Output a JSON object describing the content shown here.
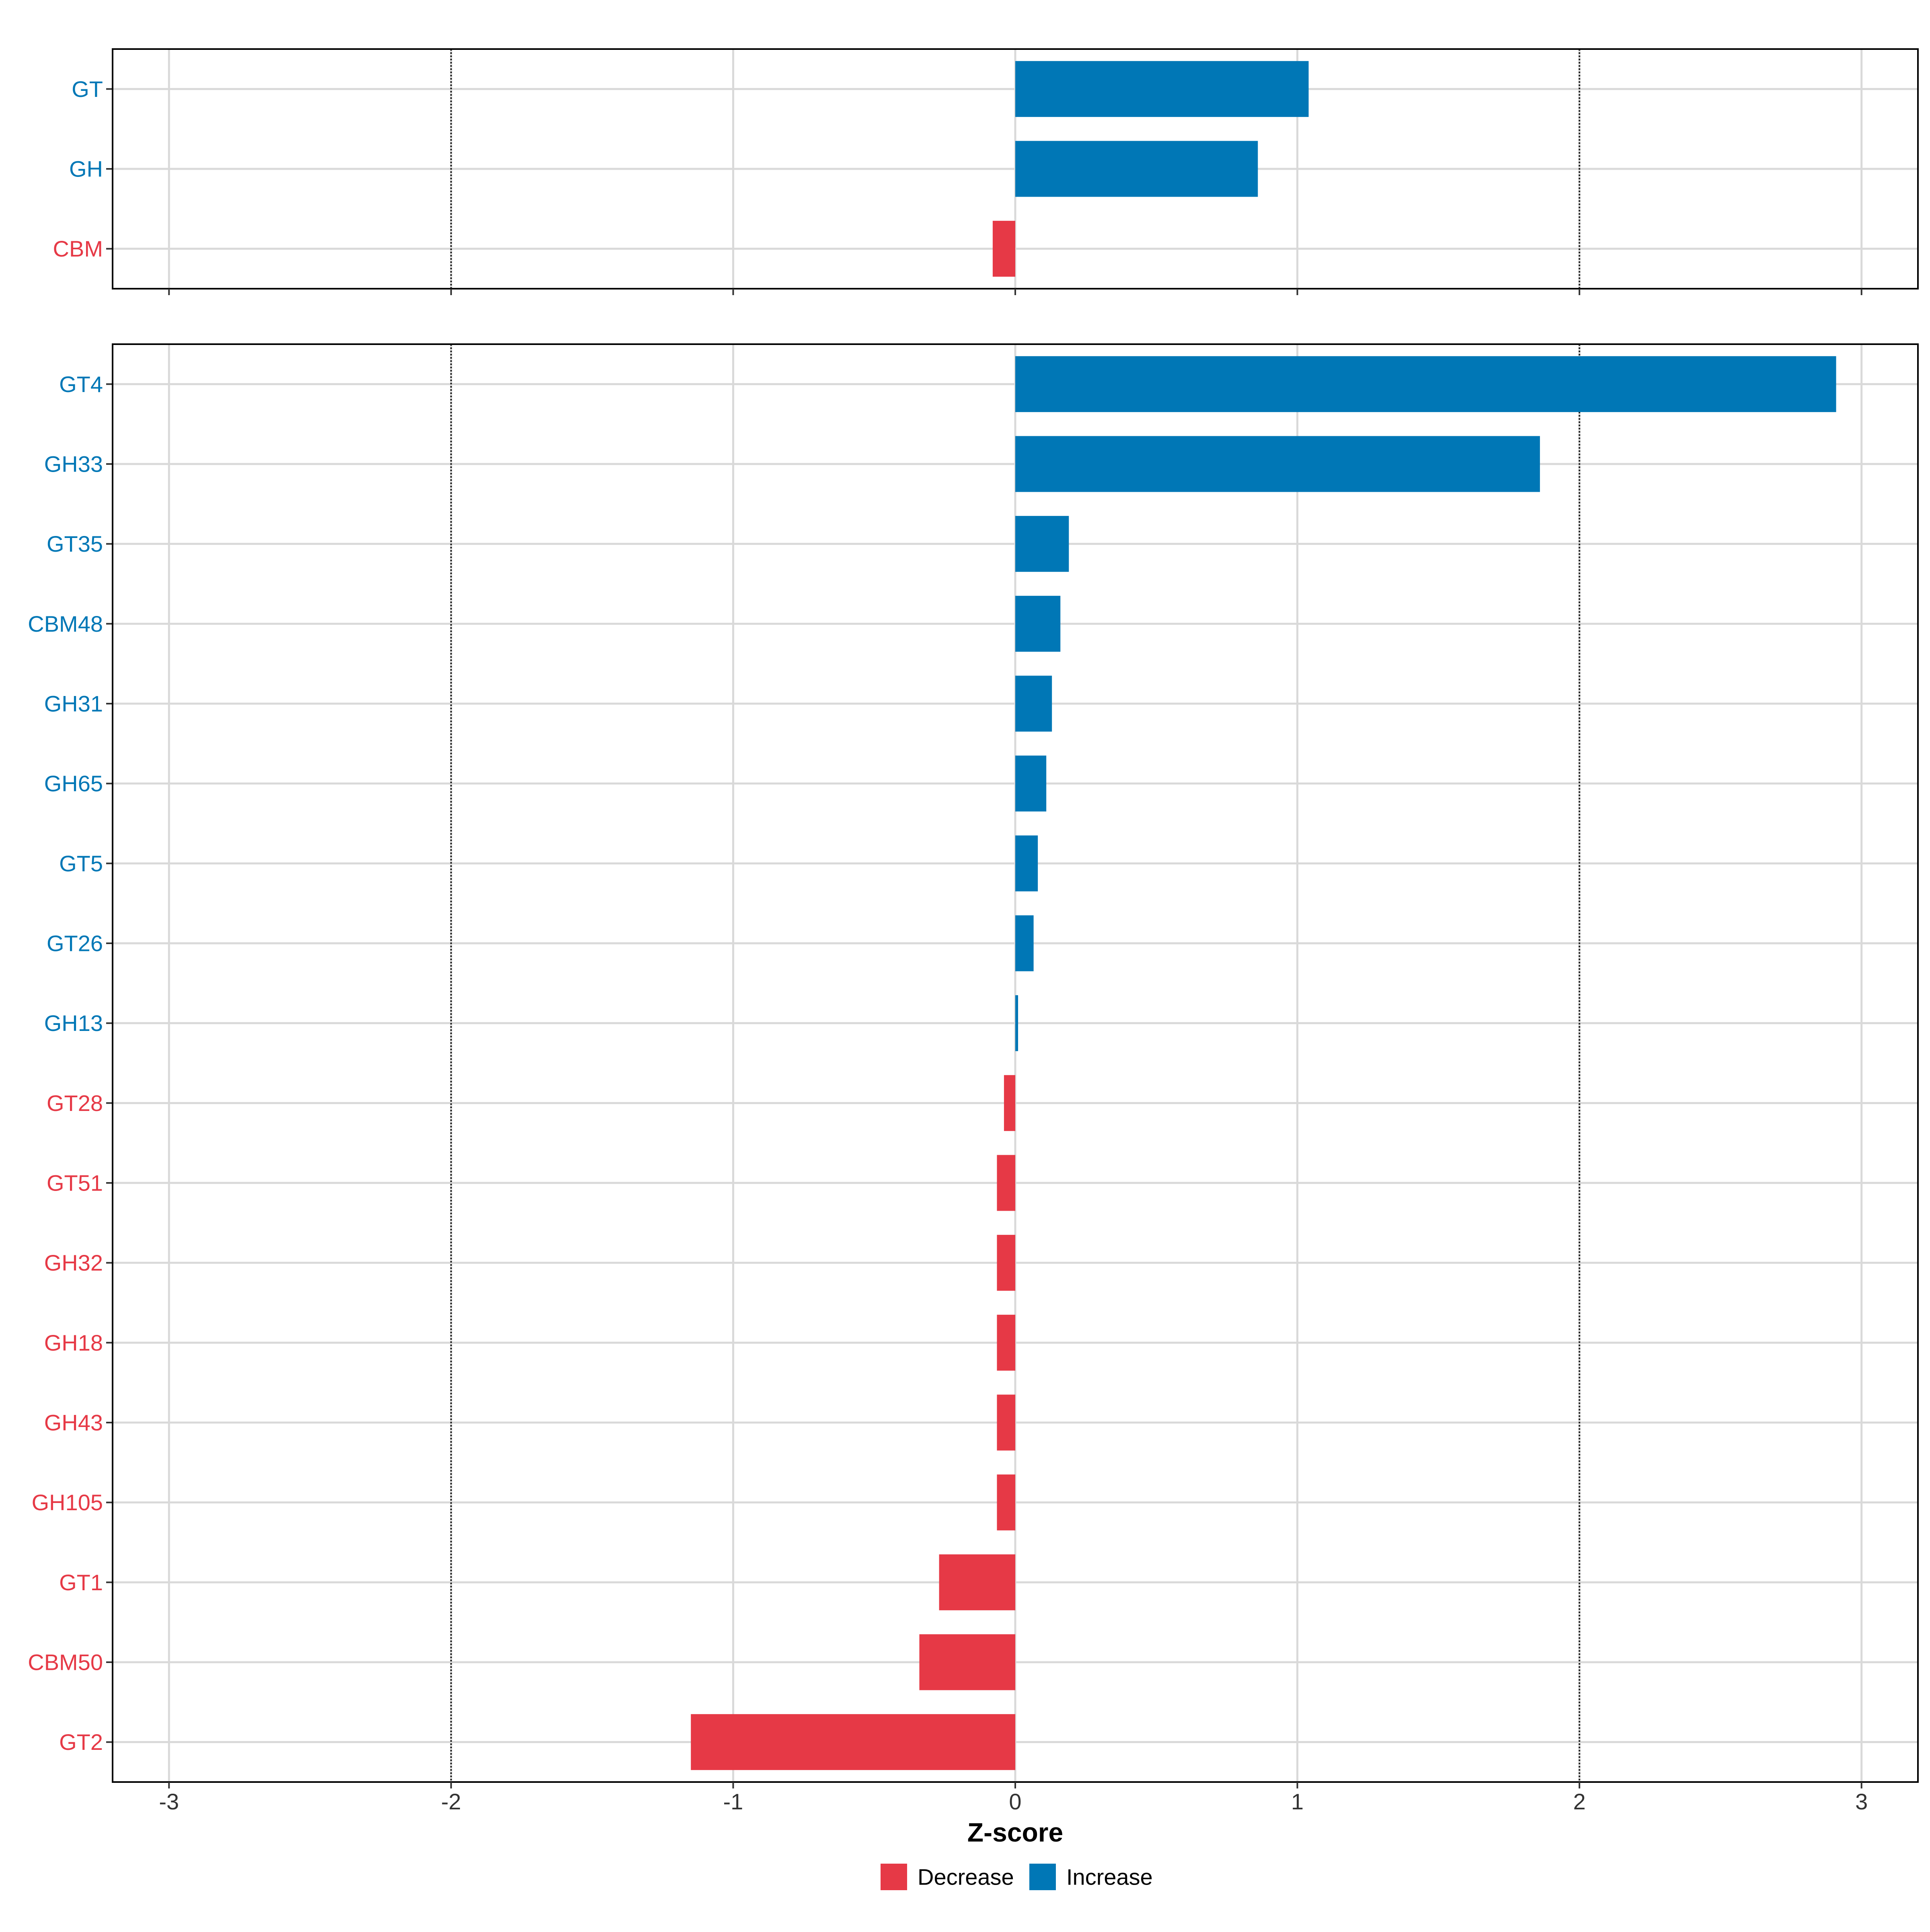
{
  "chart_data": {
    "type": "bar",
    "orientation": "horizontal",
    "xlabel": "Z-score",
    "xlim": [
      -3.2,
      3.2
    ],
    "xticks": [
      -3,
      -2,
      -1,
      0,
      1,
      2,
      3
    ],
    "xtick_labels": [
      "-3",
      "-2",
      "-1",
      "0",
      "1",
      "2",
      "3"
    ],
    "reference_lines": [
      -2,
      2
    ],
    "grid": true,
    "colors": {
      "Decrease": "#e63946",
      "Increase": "#0077b6"
    },
    "legend": {
      "position": "bottom",
      "entries": [
        {
          "label": "Decrease",
          "color": "#e63946"
        },
        {
          "label": "Increase",
          "color": "#0077b6"
        }
      ]
    },
    "panels": [
      {
        "categories": [
          "GT",
          "GH",
          "CBM"
        ],
        "values": [
          1.04,
          0.86,
          -0.08
        ],
        "direction": [
          "Increase",
          "Increase",
          "Decrease"
        ]
      },
      {
        "categories": [
          "GT4",
          "GH33",
          "GT35",
          "CBM48",
          "GH31",
          "GH65",
          "GT5",
          "GT26",
          "GH13",
          "GT28",
          "GT51",
          "GH32",
          "GH18",
          "GH43",
          "GH105",
          "GT1",
          "CBM50",
          "GT2"
        ],
        "values": [
          2.91,
          1.86,
          0.19,
          0.16,
          0.13,
          0.11,
          0.08,
          0.065,
          0.01,
          -0.04,
          -0.065,
          -0.065,
          -0.065,
          -0.065,
          -0.065,
          -0.27,
          -0.34,
          -1.15
        ],
        "direction": [
          "Increase",
          "Increase",
          "Increase",
          "Increase",
          "Increase",
          "Increase",
          "Increase",
          "Increase",
          "Increase",
          "Decrease",
          "Decrease",
          "Decrease",
          "Decrease",
          "Decrease",
          "Decrease",
          "Decrease",
          "Decrease",
          "Decrease"
        ]
      }
    ]
  }
}
